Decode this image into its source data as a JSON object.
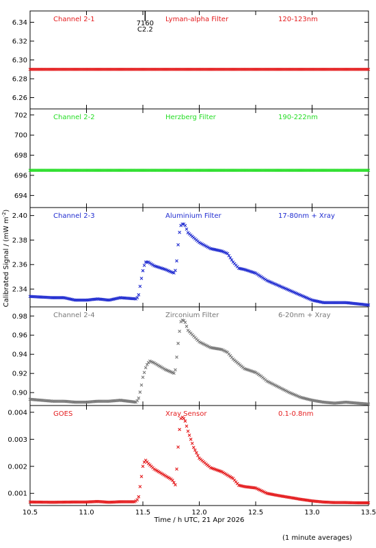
{
  "figure": {
    "ylabel_main": "Calibrated Signal / (mW m",
    "ylabel_sup": "-2",
    "ylabel_end": ")",
    "xlabel": "Time / h UTC, 21 Apr 2026",
    "footer": "(1 minute averages)",
    "flare_marker": {
      "x": 11.52,
      "label_top": "7160",
      "label_bottom": "C2.2"
    }
  },
  "chart_data": [
    {
      "type": "scatter",
      "panel_labels": [
        "Channel 2-1",
        "Lyman-alpha Filter",
        "120-123nm"
      ],
      "color": "#e41a1c",
      "xlim": [
        10.5,
        13.5
      ],
      "ylim": [
        6.248,
        6.352
      ],
      "yticks": [
        6.26,
        6.28,
        6.3,
        6.32,
        6.34
      ],
      "ytick_labels": [
        "6.26",
        "6.28",
        "6.30",
        "6.32",
        "6.34"
      ],
      "points": [
        [
          10.5,
          6.29
        ],
        [
          11.0,
          6.29
        ],
        [
          11.5,
          6.29
        ],
        [
          12.0,
          6.29
        ],
        [
          12.5,
          6.29
        ],
        [
          13.0,
          6.29
        ],
        [
          13.5,
          6.29
        ]
      ]
    },
    {
      "type": "scatter",
      "panel_labels": [
        "Channel 2-2",
        "Herzberg Filter",
        "190-222nm"
      ],
      "color": "#22dd22",
      "xlim": [
        10.5,
        13.5
      ],
      "ylim": [
        692.8,
        702.6
      ],
      "yticks": [
        694,
        696,
        698,
        700,
        702
      ],
      "ytick_labels": [
        "694",
        "696",
        "698",
        "700",
        "702"
      ],
      "points": [
        [
          10.5,
          696.5
        ],
        [
          11.0,
          696.5
        ],
        [
          11.5,
          696.5
        ],
        [
          12.0,
          696.5
        ],
        [
          12.5,
          696.5
        ],
        [
          13.0,
          696.5
        ],
        [
          13.5,
          696.5
        ]
      ]
    },
    {
      "type": "scatter",
      "panel_labels": [
        "Channel 2-3",
        "Aluminium Filter",
        "17-80nm + Xray"
      ],
      "color": "#1f2bd0",
      "xlim": [
        10.5,
        13.5
      ],
      "ylim": [
        2.3255,
        2.4065
      ],
      "yticks": [
        2.34,
        2.36,
        2.38,
        2.4
      ],
      "ytick_labels": [
        "2.34",
        "2.36",
        "2.38",
        "2.40"
      ],
      "points": [
        [
          10.5,
          2.334
        ],
        [
          10.7,
          2.333
        ],
        [
          10.8,
          2.333
        ],
        [
          10.9,
          2.331
        ],
        [
          11.0,
          2.331
        ],
        [
          11.1,
          2.332
        ],
        [
          11.2,
          2.331
        ],
        [
          11.3,
          2.333
        ],
        [
          11.44,
          2.332
        ],
        [
          11.46,
          2.334
        ],
        [
          11.48,
          2.345
        ],
        [
          11.5,
          2.355
        ],
        [
          11.52,
          2.362
        ],
        [
          11.55,
          2.362
        ],
        [
          11.6,
          2.359
        ],
        [
          11.7,
          2.356
        ],
        [
          11.75,
          2.354
        ],
        [
          11.78,
          2.353
        ],
        [
          11.79,
          2.356
        ],
        [
          11.8,
          2.363
        ],
        [
          11.82,
          2.384
        ],
        [
          11.84,
          2.393
        ],
        [
          11.87,
          2.393
        ],
        [
          11.9,
          2.386
        ],
        [
          12.0,
          2.378
        ],
        [
          12.1,
          2.373
        ],
        [
          12.2,
          2.371
        ],
        [
          12.25,
          2.369
        ],
        [
          12.3,
          2.362
        ],
        [
          12.35,
          2.357
        ],
        [
          12.4,
          2.356
        ],
        [
          12.5,
          2.353
        ],
        [
          12.6,
          2.347
        ],
        [
          12.7,
          2.343
        ],
        [
          12.8,
          2.339
        ],
        [
          12.9,
          2.335
        ],
        [
          13.0,
          2.331
        ],
        [
          13.1,
          2.329
        ],
        [
          13.2,
          2.329
        ],
        [
          13.3,
          2.329
        ],
        [
          13.4,
          2.328
        ],
        [
          13.5,
          2.327
        ]
      ]
    },
    {
      "type": "scatter",
      "panel_labels": [
        "Channel 2-4",
        "Zirconium Filter",
        "6-20nm + Xray"
      ],
      "color": "#777777",
      "xlim": [
        10.5,
        13.5
      ],
      "ylim": [
        0.8865,
        0.9895
      ],
      "yticks": [
        0.9,
        0.92,
        0.94,
        0.96,
        0.98
      ],
      "ytick_labels": [
        "0.90",
        "0.92",
        "0.94",
        "0.96",
        "0.98"
      ],
      "points": [
        [
          10.5,
          0.893
        ],
        [
          10.6,
          0.892
        ],
        [
          10.7,
          0.891
        ],
        [
          10.8,
          0.891
        ],
        [
          10.9,
          0.89
        ],
        [
          11.0,
          0.89
        ],
        [
          11.1,
          0.891
        ],
        [
          11.2,
          0.891
        ],
        [
          11.3,
          0.892
        ],
        [
          11.44,
          0.89
        ],
        [
          11.46,
          0.893
        ],
        [
          11.48,
          0.903
        ],
        [
          11.5,
          0.916
        ],
        [
          11.53,
          0.928
        ],
        [
          11.56,
          0.933
        ],
        [
          11.6,
          0.931
        ],
        [
          11.7,
          0.924
        ],
        [
          11.76,
          0.921
        ],
        [
          11.78,
          0.92
        ],
        [
          11.79,
          0.925
        ],
        [
          11.8,
          0.937
        ],
        [
          11.82,
          0.96
        ],
        [
          11.84,
          0.976
        ],
        [
          11.87,
          0.975
        ],
        [
          11.9,
          0.965
        ],
        [
          12.0,
          0.953
        ],
        [
          12.1,
          0.947
        ],
        [
          12.2,
          0.945
        ],
        [
          12.25,
          0.942
        ],
        [
          12.3,
          0.935
        ],
        [
          12.4,
          0.925
        ],
        [
          12.5,
          0.921
        ],
        [
          12.55,
          0.917
        ],
        [
          12.6,
          0.912
        ],
        [
          12.7,
          0.906
        ],
        [
          12.8,
          0.9
        ],
        [
          12.9,
          0.895
        ],
        [
          13.0,
          0.892
        ],
        [
          13.1,
          0.89
        ],
        [
          13.2,
          0.889
        ],
        [
          13.3,
          0.89
        ],
        [
          13.4,
          0.889
        ],
        [
          13.5,
          0.888
        ]
      ]
    },
    {
      "type": "scatter",
      "panel_labels": [
        "GOES",
        "Xray Sensor",
        "0.1-0.8nm"
      ],
      "color": "#e41a1c",
      "xlim": [
        10.5,
        13.5
      ],
      "ylim": [
        0.00055,
        0.00425
      ],
      "yticks": [
        0.001,
        0.002,
        0.003,
        0.004
      ],
      "ytick_labels": [
        "0.001",
        "0.002",
        "0.003",
        "0.004"
      ],
      "points": [
        [
          10.5,
          0.00068
        ],
        [
          10.7,
          0.00067
        ],
        [
          10.9,
          0.00068
        ],
        [
          11.0,
          0.00068
        ],
        [
          11.1,
          0.0007
        ],
        [
          11.2,
          0.00067
        ],
        [
          11.3,
          0.00069
        ],
        [
          11.43,
          0.00069
        ],
        [
          11.46,
          0.0008
        ],
        [
          11.48,
          0.0014
        ],
        [
          11.5,
          0.002
        ],
        [
          11.52,
          0.00225
        ],
        [
          11.55,
          0.0021
        ],
        [
          11.6,
          0.0019
        ],
        [
          11.7,
          0.00165
        ],
        [
          11.76,
          0.0015
        ],
        [
          11.79,
          0.0013
        ],
        [
          11.8,
          0.0019
        ],
        [
          11.82,
          0.0032
        ],
        [
          11.84,
          0.00385
        ],
        [
          11.87,
          0.00375
        ],
        [
          11.9,
          0.0033
        ],
        [
          11.95,
          0.0027
        ],
        [
          12.0,
          0.0023
        ],
        [
          12.1,
          0.00195
        ],
        [
          12.2,
          0.0018
        ],
        [
          12.3,
          0.00155
        ],
        [
          12.35,
          0.0013
        ],
        [
          12.4,
          0.00125
        ],
        [
          12.5,
          0.0012
        ],
        [
          12.55,
          0.0011
        ],
        [
          12.6,
          0.001
        ],
        [
          12.7,
          0.00092
        ],
        [
          12.8,
          0.00085
        ],
        [
          12.9,
          0.00078
        ],
        [
          13.0,
          0.00072
        ],
        [
          13.1,
          0.00068
        ],
        [
          13.2,
          0.00066
        ],
        [
          13.3,
          0.00066
        ],
        [
          13.4,
          0.00065
        ],
        [
          13.5,
          0.00065
        ]
      ]
    }
  ],
  "x_axis": {
    "ticks": [
      10.5,
      11.0,
      11.5,
      12.0,
      12.5,
      13.0,
      13.5
    ],
    "tick_labels": [
      "10.5",
      "11.0",
      "11.5",
      "12.0",
      "12.5",
      "13.0",
      "13.5"
    ]
  }
}
